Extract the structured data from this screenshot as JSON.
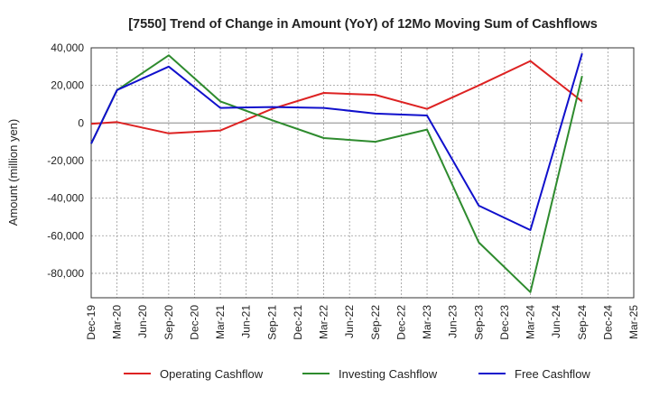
{
  "chart_data": {
    "type": "line",
    "title": "[7550]  Trend of Change in Amount (YoY) of 12Mo Moving Sum of Cashflows",
    "xlabel": "",
    "ylabel": "Amount (million yen)",
    "ylim": [
      -93000,
      40000
    ],
    "yticks": [
      40000,
      20000,
      0,
      -20000,
      -40000,
      -60000,
      -80000
    ],
    "ytick_labels": [
      "40,000",
      "20,000",
      "0",
      "-20,000",
      "-40,000",
      "-60,000",
      "-80,000"
    ],
    "categories": [
      "Dec-19",
      "Mar-20",
      "Jun-20",
      "Sep-20",
      "Dec-20",
      "Mar-21",
      "Jun-21",
      "Sep-21",
      "Dec-21",
      "Mar-22",
      "Jun-22",
      "Sep-22",
      "Dec-22",
      "Mar-23",
      "Jun-23",
      "Sep-23",
      "Dec-23",
      "Mar-24",
      "Jun-24",
      "Sep-24",
      "Dec-24",
      "Mar-25"
    ],
    "grid": true,
    "legend_position": "bottom",
    "series": [
      {
        "name": "Operating Cashflow",
        "color": "#dd2222",
        "values": [
          -500,
          500,
          null,
          -5500,
          null,
          -4000,
          null,
          7500,
          null,
          16000,
          null,
          15000,
          null,
          7500,
          null,
          20000,
          null,
          33000,
          null,
          11500,
          null,
          null
        ]
      },
      {
        "name": "Investing Cashflow",
        "color": "#2e8b2e",
        "values": [
          -11000,
          17500,
          null,
          36000,
          null,
          11500,
          null,
          1500,
          null,
          -8000,
          null,
          -10000,
          null,
          -3500,
          null,
          -63500,
          null,
          -90000,
          null,
          25000,
          null,
          null
        ]
      },
      {
        "name": "Free Cashflow",
        "color": "#1010cc",
        "values": [
          -11000,
          17500,
          null,
          30000,
          null,
          8000,
          null,
          8500,
          null,
          8000,
          null,
          5000,
          null,
          4000,
          null,
          -44000,
          null,
          -57000,
          null,
          37000,
          null,
          null
        ]
      }
    ]
  }
}
